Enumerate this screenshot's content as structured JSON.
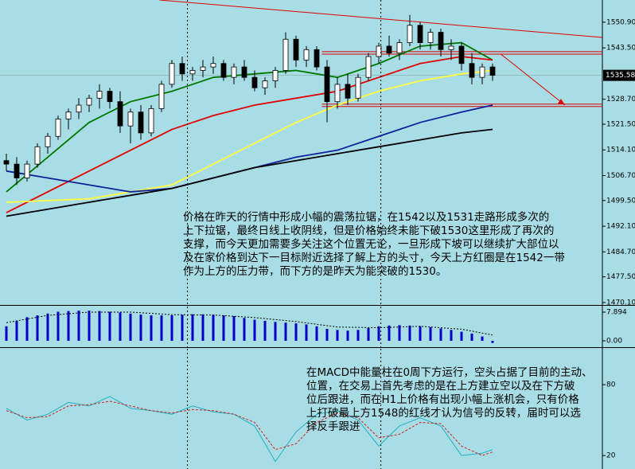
{
  "chart_data": [
    {
      "type": "candlestick",
      "ylim": [
        1469.4,
        1557.3
      ],
      "yticks": [
        {
          "value": 1550.9,
          "label": "1550.90"
        },
        {
          "value": 1543.5,
          "label": "1543.50"
        },
        {
          "value": 1528.7,
          "label": "1528.70"
        },
        {
          "value": 1521.5,
          "label": "1521.50"
        },
        {
          "value": 1514.1,
          "label": "1514.10"
        },
        {
          "value": 1506.7,
          "label": "1506.70"
        },
        {
          "value": 1499.5,
          "label": "1499.50"
        },
        {
          "value": 1492.1,
          "label": "1492.10"
        },
        {
          "value": 1484.7,
          "label": "1484.70"
        },
        {
          "value": 1477.5,
          "label": "1477.50"
        },
        {
          "value": 1470.1,
          "label": "1470.10"
        }
      ],
      "current_price": 1535.58,
      "up_color": "#ffffff",
      "down_color": "#000000",
      "candles": [
        [
          1511,
          1513,
          1508,
          1510
        ],
        [
          1510,
          1512,
          1504,
          1506
        ],
        [
          1506,
          1511,
          1505,
          1510
        ],
        [
          1510,
          1516,
          1509,
          1515
        ],
        [
          1515,
          1519,
          1513,
          1518
        ],
        [
          1518,
          1524,
          1517,
          1523
        ],
        [
          1523,
          1526,
          1520,
          1525
        ],
        [
          1525,
          1529,
          1523,
          1527
        ],
        [
          1527,
          1530,
          1525,
          1529
        ],
        [
          1529,
          1533,
          1526,
          1531
        ],
        [
          1531,
          1532,
          1526,
          1528
        ],
        [
          1528,
          1531,
          1519,
          1521
        ],
        [
          1521,
          1526,
          1516,
          1525
        ],
        [
          1525,
          1527,
          1517,
          1519
        ],
        [
          1519,
          1527,
          1518,
          1526
        ],
        [
          1526,
          1534,
          1525,
          1533
        ],
        [
          1533,
          1540,
          1532,
          1539
        ],
        [
          1539,
          1541,
          1534,
          1536
        ],
        [
          1536,
          1538,
          1534,
          1537
        ],
        [
          1537,
          1540,
          1535,
          1538
        ],
        [
          1538,
          1541,
          1536,
          1539
        ],
        [
          1539,
          1540,
          1534,
          1535
        ],
        [
          1535,
          1539,
          1533,
          1538
        ],
        [
          1538,
          1540,
          1534,
          1535
        ],
        [
          1535,
          1537,
          1531,
          1532
        ],
        [
          1532,
          1535,
          1530,
          1534
        ],
        [
          1534,
          1538,
          1532,
          1537
        ],
        [
          1537,
          1548,
          1536,
          1546
        ],
        [
          1546,
          1547,
          1538,
          1540
        ],
        [
          1540,
          1544,
          1538,
          1543
        ],
        [
          1543,
          1544,
          1537,
          1538
        ],
        [
          1538,
          1540,
          1522,
          1528
        ],
        [
          1528,
          1535,
          1526,
          1533
        ],
        [
          1533,
          1536,
          1527,
          1529
        ],
        [
          1529,
          1536,
          1528,
          1535
        ],
        [
          1535,
          1542,
          1534,
          1541
        ],
        [
          1541,
          1545,
          1539,
          1544
        ],
        [
          1544,
          1547,
          1541,
          1542
        ],
        [
          1542,
          1546,
          1540,
          1545
        ],
        [
          1545,
          1553,
          1544,
          1550
        ],
        [
          1550,
          1551,
          1543,
          1545
        ],
        [
          1545,
          1549,
          1543,
          1548
        ],
        [
          1548,
          1549,
          1541,
          1543
        ],
        [
          1543,
          1546,
          1540,
          1544
        ],
        [
          1544,
          1545,
          1537,
          1539
        ],
        [
          1539,
          1542,
          1533,
          1535
        ],
        [
          1535,
          1539,
          1533,
          1538
        ],
        [
          1538,
          1539,
          1534,
          1535.6
        ]
      ],
      "series": [
        {
          "color": "#007800",
          "x": [
            0,
            4,
            8,
            12,
            16,
            20,
            24,
            28,
            32,
            36,
            40,
            44,
            47
          ],
          "values": [
            1502,
            1512,
            1522,
            1528,
            1531,
            1535,
            1536,
            1537,
            1535,
            1539,
            1544,
            1545,
            1540
          ]
        },
        {
          "color": "#e00000",
          "x": [
            0,
            4,
            8,
            12,
            16,
            20,
            24,
            28,
            32,
            36,
            40,
            44,
            47
          ],
          "values": [
            1496,
            1502,
            1508,
            1514,
            1520,
            1524,
            1527,
            1529,
            1531,
            1535,
            1539,
            1541,
            1540
          ]
        },
        {
          "color": "#ffff40",
          "x": [
            0,
            4,
            8,
            12,
            16,
            20,
            24,
            28,
            32,
            36,
            40,
            44,
            47
          ],
          "values": [
            1499,
            1499.5,
            1500,
            1502,
            1504,
            1510,
            1516,
            1522,
            1527,
            1531,
            1534,
            1536,
            1537
          ]
        },
        {
          "color": "#10209a",
          "x": [
            0,
            4,
            8,
            12,
            16,
            20,
            24,
            28,
            32,
            36,
            40,
            44,
            47
          ],
          "values": [
            1508,
            1506,
            1504,
            1502,
            1503,
            1506,
            1509,
            1512,
            1514,
            1518,
            1522,
            1525,
            1527
          ]
        },
        {
          "color": "#000000",
          "x": [
            0,
            4,
            8,
            12,
            16,
            20,
            24,
            28,
            32,
            36,
            40,
            44,
            47
          ],
          "values": [
            1495,
            1497,
            1499,
            1501,
            1503,
            1506,
            1509,
            1511,
            1513,
            1515,
            1517,
            1519,
            1520
          ]
        }
      ],
      "levels": [
        1542.4,
        1541.7,
        1527.3,
        1526.6
      ],
      "trend_line": {
        "x": [
          14.8,
          57.6
        ],
        "y": [
          1557.3,
          1546.5
        ]
      },
      "arrow": {
        "x": [
          47.8,
          54
        ],
        "y": [
          1541.7,
          1527
        ]
      },
      "period_separators": [
        17.5,
        36.2
      ],
      "annotation": [
        "价格在昨天的行情中形成小幅的震荡拉锯，在1542以及1531走路形成多次的",
        "上下拉锯，最终日线上收阴线，但是价格始终未能下破1530这里形成了再次的",
        "支撑，而今天更加需要多关注这个位置无论，一旦形成下坡可以继续扩大部位以",
        "及在家价格到达下一目标附近选择了解上方的头寸，今天上方红圈是在1542一带",
        "作为上方的压力带，而下方的是昨天为能突破的1530。"
      ]
    },
    {
      "type": "bar",
      "ylim": [
        -1.75,
        9.43
      ],
      "yticks": [
        7.894,
        {
          "value": 0,
          "label": "0.00"
        }
      ],
      "color": "#0000c8",
      "values": [
        4,
        5.5,
        6.5,
        7,
        7.5,
        8,
        8.2,
        8.3,
        8.3,
        8.2,
        8,
        7.8,
        7.5,
        7.2,
        7,
        7,
        7,
        7.2,
        7.3,
        7.3,
        7.2,
        7,
        6.8,
        6.3,
        5.8,
        5.5,
        5.2,
        5,
        4.8,
        4.5,
        4,
        3.3,
        3,
        2.8,
        3,
        3.5,
        4,
        4.2,
        4.3,
        4.2,
        4,
        3.8,
        3.4,
        3,
        2.5,
        2,
        1.2,
        -0.6
      ],
      "signal": {
        "color": "#000000",
        "x": [
          0,
          4,
          8,
          12,
          16,
          20,
          24,
          28,
          32,
          36,
          40,
          44,
          47
        ],
        "values": [
          5,
          7,
          7.9,
          7.9,
          7.2,
          7.1,
          6.4,
          5.3,
          3.8,
          3.6,
          4,
          3.2,
          1.6
        ]
      }
    },
    {
      "type": "line",
      "ylim": [
        8.6,
        110.4
      ],
      "yticks": [
        80,
        20
      ],
      "x": [
        0,
        2,
        4,
        6,
        8,
        10,
        12,
        14,
        16,
        18,
        20,
        22,
        24,
        26,
        28,
        30,
        32,
        34,
        36,
        38,
        40,
        42,
        44,
        46,
        47
      ],
      "series": [
        {
          "color": "#20b0c0",
          "values": [
            60,
            50,
            55,
            65,
            62,
            70,
            60,
            58,
            55,
            62,
            57,
            55,
            45,
            15,
            40,
            55,
            58,
            50,
            28,
            45,
            52,
            45,
            20,
            22,
            25
          ]
        },
        {
          "color": "#d02020",
          "dashed": true,
          "values": [
            58,
            52,
            53,
            62,
            63,
            66,
            62,
            58,
            56,
            59,
            58,
            55,
            48,
            25,
            30,
            48,
            56,
            52,
            35,
            38,
            48,
            47,
            28,
            20,
            23
          ]
        }
      ],
      "annotation": [
        "在MACD中能量柱在0周下方运行，空头占据了目前的主动、",
        "位置，在交易上首先考虑的是在上方建立空以及在下方破",
        "位后跟进，而在H1上价格有出现小幅上涨机会，只有价格",
        "上打破最上方1548的红线才认为信号的反转，届时可以选",
        "择反手跟进"
      ]
    }
  ]
}
